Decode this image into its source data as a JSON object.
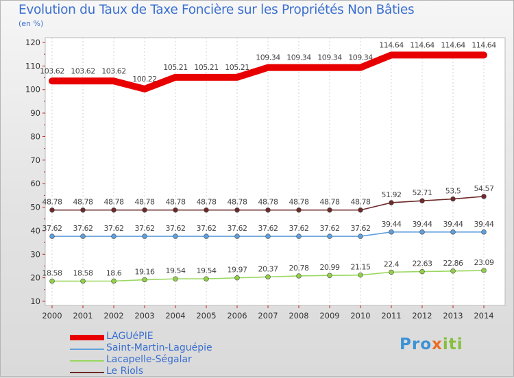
{
  "chart_data": {
    "type": "line",
    "title": "Evolution du Taux de Taxe Foncière sur les Propriétés Non Bâties",
    "ylabel": "(en %)",
    "xlabel": "",
    "x": [
      "2000",
      "2001",
      "2002",
      "2003",
      "2004",
      "2005",
      "2006",
      "2007",
      "2008",
      "2009",
      "2010",
      "2011",
      "2012",
      "2013",
      "2014"
    ],
    "ylim": [
      10,
      120
    ],
    "yticks": [
      10,
      20,
      30,
      40,
      50,
      60,
      70,
      80,
      90,
      100,
      110,
      120
    ],
    "grid": "dashed vertical",
    "legend_position": "bottom-left",
    "series": [
      {
        "name": "LAGUéPIE",
        "color": "#e80000",
        "marker": "none",
        "values": [
          103.62,
          103.62,
          103.62,
          100.22,
          105.21,
          105.21,
          105.21,
          109.34,
          109.34,
          109.34,
          109.34,
          114.64,
          114.64,
          114.64,
          114.64
        ],
        "labels": [
          "103.62",
          "103.62",
          "103.62",
          "100.22",
          "105.21",
          "105.21",
          "105.21",
          "109.34",
          "109.34",
          "109.34",
          "109.34",
          "114.64",
          "114.64",
          "114.64",
          "114.64"
        ]
      },
      {
        "name": "Saint-Martin-Laguépie",
        "color": "#5f9fdc",
        "marker": "#5f9fdc",
        "values": [
          37.62,
          37.62,
          37.62,
          37.62,
          37.62,
          37.62,
          37.62,
          37.62,
          37.62,
          37.62,
          37.62,
          39.44,
          39.44,
          39.44,
          39.44
        ],
        "labels": [
          "37.62",
          "37.62",
          "37.62",
          "37.62",
          "37.62",
          "37.62",
          "37.62",
          "37.62",
          "37.62",
          "37.62",
          "37.62",
          "39.44",
          "39.44",
          "39.44",
          "39.44"
        ]
      },
      {
        "name": "Lacapelle-Ségalar",
        "color": "#9ad75f",
        "marker": "#92d048",
        "values": [
          18.58,
          18.58,
          18.6,
          19.16,
          19.54,
          19.54,
          19.97,
          20.37,
          20.78,
          20.99,
          21.15,
          22.4,
          22.63,
          22.86,
          23.09
        ],
        "labels": [
          "18.58",
          "18.58",
          "18.6",
          "19.16",
          "19.54",
          "19.54",
          "19.97",
          "20.37",
          "20.78",
          "20.99",
          "21.15",
          "22.4",
          "22.63",
          "22.86",
          "23.09"
        ]
      },
      {
        "name": "Le Riols",
        "color": "#6e2b2b",
        "marker": "#6e2b2b",
        "values": [
          48.78,
          48.78,
          48.78,
          48.78,
          48.78,
          48.78,
          48.78,
          48.78,
          48.78,
          48.78,
          48.78,
          51.92,
          52.71,
          53.5,
          54.57
        ],
        "labels": [
          "48.78",
          "48.78",
          "48.78",
          "48.78",
          "48.78",
          "48.78",
          "48.78",
          "48.78",
          "48.78",
          "48.78",
          "48.78",
          "51.92",
          "52.71",
          "53.5",
          "54.57"
        ]
      }
    ]
  },
  "logo": {
    "p1": "Pro",
    "p2": "x",
    "p3": "iti"
  }
}
